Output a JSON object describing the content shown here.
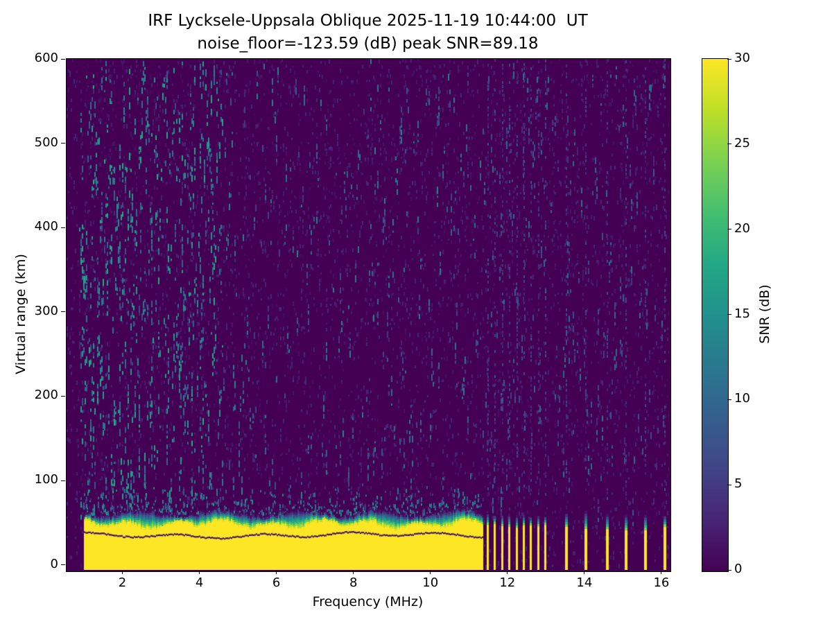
{
  "chart_data": {
    "type": "heatmap",
    "title": "IRF Lycksele-Uppsala Oblique 2025-11-19 10:44:00  UT",
    "subtitle": "noise_floor=-123.59 (dB) peak SNR=89.18",
    "xlabel": "Frequency (MHz)",
    "ylabel": "Virtual range (km)",
    "xlim": [
      0.55,
      16.2
    ],
    "ylim": [
      -6,
      600
    ],
    "xticks": [
      2,
      4,
      6,
      8,
      10,
      12,
      14,
      16
    ],
    "yticks": [
      0,
      100,
      200,
      300,
      400,
      500,
      600
    ],
    "grid": false,
    "legend": false,
    "colorbar": {
      "label": "SNR (dB)",
      "min": 0,
      "max": 30,
      "ticks": [
        0,
        5,
        10,
        15,
        20,
        25,
        30
      ],
      "colormap": "viridis",
      "viridis_stops": [
        "#440154",
        "#482475",
        "#414487",
        "#355f8d",
        "#2a788e",
        "#21918c",
        "#22a884",
        "#44bf70",
        "#7ad151",
        "#bddf26",
        "#fde725"
      ]
    },
    "features": {
      "background_snr_db": 0,
      "ground_band": {
        "f_start_mhz": 1.0,
        "f_end_mhz": 11.35,
        "solid_top_km": 48,
        "fade_top_km": 61,
        "dark_line_km": 36,
        "snr_db": 30
      },
      "stripe_cluster": {
        "f_start_mhz": 11.5,
        "f_end_mhz": 13.0,
        "count": 9,
        "solid_top_km": 46,
        "tip_top_km": 58
      },
      "isolated_stripes_mhz": [
        13.55,
        14.05,
        14.6,
        15.1,
        15.6,
        16.1
      ],
      "isolated_stripe": {
        "solid_top_km": 44,
        "tip_top_km": 60
      },
      "speckles": {
        "dense_f_range_mhz": [
          0.9,
          4.6
        ],
        "dense_count": 520,
        "mid_f_range_mhz": [
          4.6,
          11.4
        ],
        "mid_count": 260,
        "right_f_range_mhz": [
          11.4,
          16.15
        ],
        "right_count": 210
      }
    }
  }
}
